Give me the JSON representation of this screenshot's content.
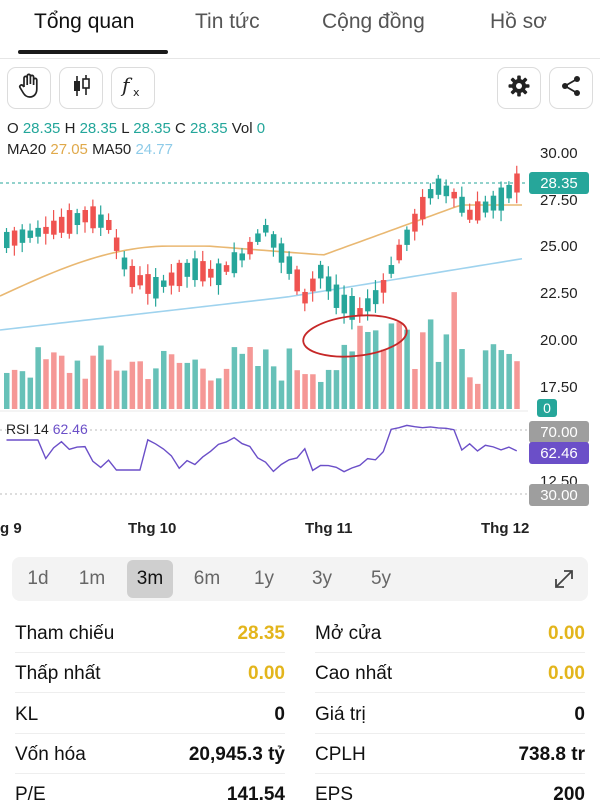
{
  "tabs": [
    {
      "label": "Tổng quan"
    },
    {
      "label": "Tin tức"
    },
    {
      "label": "Cộng đồng"
    },
    {
      "label": "Hồ sơ"
    }
  ],
  "toolbar": {
    "icons": [
      "hand-icon",
      "candlestick-icon",
      "function-icon",
      "settings-icon",
      "share-icon"
    ]
  },
  "ohlc": {
    "o_label": "O",
    "o": "28.35",
    "h_label": "H",
    "h": "28.35",
    "l_label": "L",
    "l": "28.35",
    "c_label": "C",
    "c": "28.35",
    "vol_label": "Vol",
    "vol": "0"
  },
  "ma": {
    "ma20_label": "MA20",
    "ma20": "27.05",
    "ma50_label": "MA50",
    "ma50": "24.77"
  },
  "colors": {
    "up": "#26a69a",
    "down": "#ef5350",
    "ma20": "#e9b872",
    "ma50": "#9fd3ee",
    "rsi": "#6b4fc8"
  },
  "price_axis": [
    "30.00",
    "27.50",
    "25.00",
    "22.50",
    "20.00",
    "17.50",
    "12.50"
  ],
  "price_tag": "28.35",
  "volume_tag": "0",
  "rsi": {
    "label": "RSI 14",
    "value": "62.46",
    "upper": "70.00",
    "lower": "30.00"
  },
  "x_labels": [
    "g 9",
    "Thg 10",
    "Thg 11",
    "Thg 12"
  ],
  "periods": [
    "1d",
    "1m",
    "3m",
    "6m",
    "1y",
    "3y",
    "5y"
  ],
  "active_period": "3m",
  "stats": {
    "ref_label": "Tham chiếu",
    "ref_value": "28.35",
    "open_label": "Mở cửa",
    "open_value": "0.00",
    "low_label": "Thấp nhất",
    "low_value": "0.00",
    "high_label": "Cao nhất",
    "high_value": "0.00",
    "vol_label": "KL",
    "vol_value": "0",
    "val_label": "Giá trị",
    "val_value": "0",
    "cap_label": "Vốn hóa",
    "cap_value": "20,945.3 tỷ",
    "shares_label": "CPLH",
    "shares_value": "738.8 tr",
    "pe_label": "P/E",
    "pe_value": "141.54",
    "eps_label": "EPS",
    "eps_value": "200"
  }
}
